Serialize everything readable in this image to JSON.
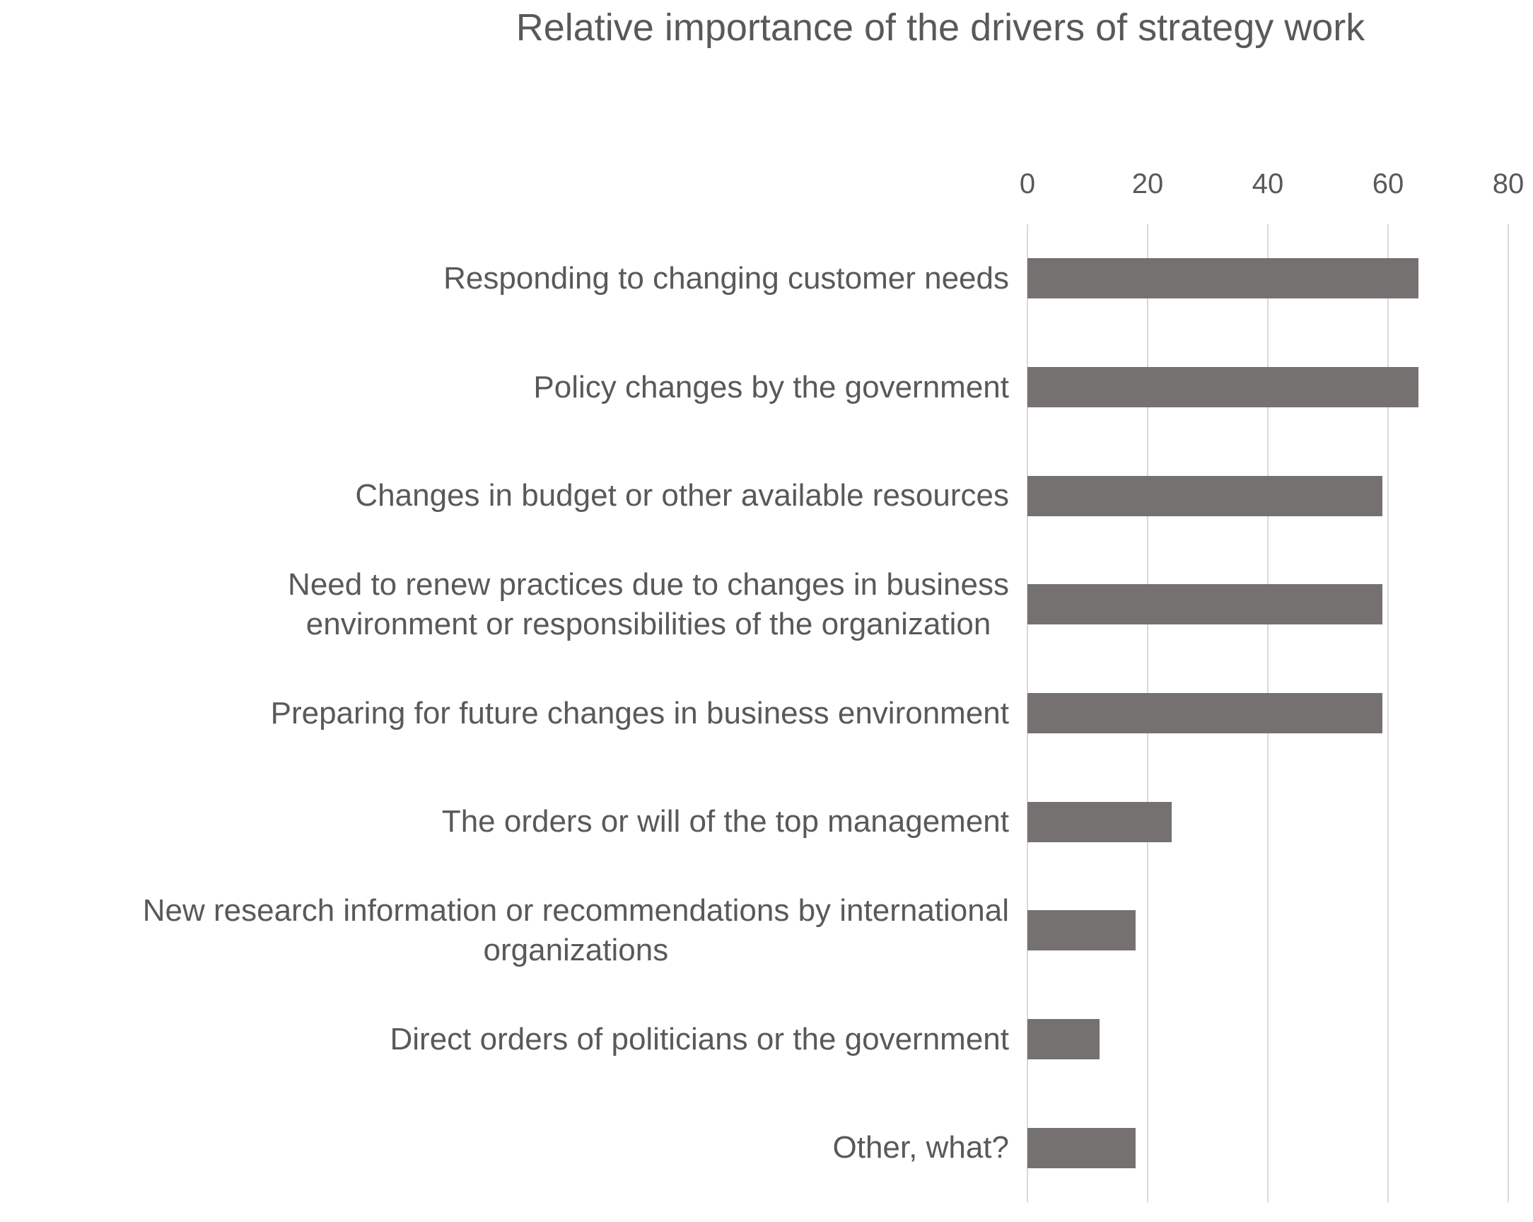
{
  "chart_data": {
    "type": "bar",
    "orientation": "horizontal",
    "title": "Relative importance of the drivers of strategy work",
    "categories": [
      "Responding to changing customer needs",
      "Policy changes by the government",
      "Changes in budget or other available resources",
      "Need to renew practices due to changes in business\nenvironment or responsibilities of the organization",
      "Preparing for future changes in business environment",
      "The orders or will of the top management",
      "New research information or recommendations by international\norganizations",
      "Direct orders of politicians or the government",
      "Other, what?"
    ],
    "values": [
      65,
      65,
      59,
      59,
      59,
      24,
      18,
      12,
      18
    ],
    "xlabel": "",
    "ylabel": "",
    "xlim": [
      0,
      80
    ],
    "x_ticks": [
      0,
      20,
      40,
      60,
      80
    ],
    "grid": true,
    "legend": false,
    "bar_color": "#767171",
    "gridline_color": "#D9D9D9",
    "text_color": "#595959",
    "background_color": "#FFFFFF"
  }
}
